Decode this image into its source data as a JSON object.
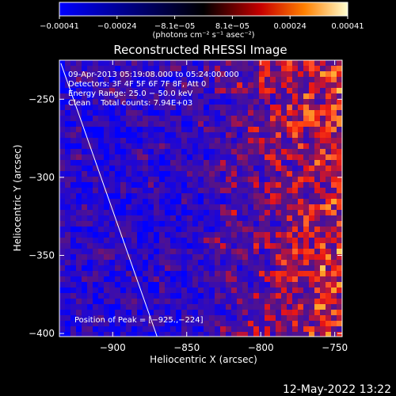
{
  "chart_data": {
    "type": "heatmap",
    "title": "Reconstructed RHESSI Image",
    "xlabel": "Heliocentric X (arcsec)",
    "ylabel": "Heliocentric Y (arcsec)",
    "xlim": [
      -936,
      -745
    ],
    "ylim": [
      -402,
      -225
    ],
    "x_ticks": [
      -900,
      -850,
      -800,
      -750
    ],
    "x_tick_labels": [
      "−900",
      "−850",
      "−800",
      "−750"
    ],
    "y_ticks": [
      -400,
      -350,
      -300,
      -250
    ],
    "y_tick_labels": [
      "−400",
      "−350",
      "−300",
      "−250"
    ],
    "colorbar": {
      "min": -0.00041,
      "max": 0.00041,
      "tick_labels": [
        "−0.00041",
        "−0.00024",
        "−8.1e−05",
        "8.1e−05",
        "0.00024",
        "0.00041"
      ],
      "unit_label": "(photons cm⁻² s⁻¹ asec⁻²)"
    },
    "annotations": [
      "09-Apr-2013 05:19:08.000 to 05:24:00.000",
      "Detectors: 3F 4F 5F 6F 7F 8F, Att 0",
      "Energy Range: 25.0 − 50.0 keV",
      "Clean    Total counts: 7.94E+03"
    ],
    "peak_label": "Position of Peak = [−925.,−224]",
    "limb": [
      [
        -935,
        -227
      ],
      [
        -870,
        -402
      ]
    ],
    "grid": false
  },
  "footer": {
    "timestamp": "12-May-2022 13:22"
  }
}
